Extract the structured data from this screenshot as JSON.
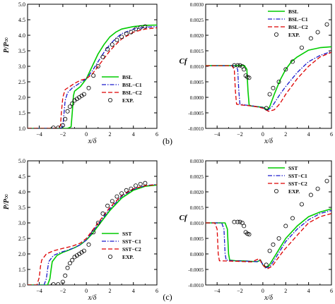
{
  "figure": {
    "caption_b": "(b)",
    "caption_c": "(c)"
  },
  "chart_data": [
    {
      "type": "line",
      "xlabel": "x/δ",
      "ylabel": "P/P∞",
      "xlim": [
        -5,
        6
      ],
      "ylim": [
        1.0,
        5.0
      ],
      "xticks": [
        -4,
        -2,
        0,
        2,
        4,
        6
      ],
      "yticks": [
        1.0,
        1.5,
        2.0,
        2.5,
        3.0,
        3.5,
        4.0,
        4.5,
        5.0
      ],
      "grid": false,
      "legend_position": "lower-right",
      "series": [
        {
          "name": "BSL",
          "color": "#00cc00",
          "style": "solid",
          "x": [
            -5,
            -2,
            -1.6,
            -1.3,
            -1.2,
            -1.1,
            -1.0,
            -0.5,
            0,
            0.5,
            1,
            1.5,
            2,
            2.5,
            3,
            4,
            5,
            6
          ],
          "y": [
            1.0,
            1.0,
            1.0,
            1.05,
            1.5,
            2.05,
            2.2,
            2.35,
            2.6,
            3.0,
            3.4,
            3.7,
            3.95,
            4.1,
            4.2,
            4.28,
            4.32,
            4.33
          ]
        },
        {
          "name": "BSL−C1",
          "color": "#1a1acc",
          "style": "dashdot",
          "x": [
            -5,
            -2.2,
            -2.0,
            -1.9,
            -1.8,
            -1.6,
            -1.2,
            -0.8,
            -0.4,
            0,
            0.5,
            1,
            1.5,
            2,
            2.5,
            3,
            4,
            5,
            6
          ],
          "y": [
            1.0,
            1.0,
            1.05,
            1.5,
            1.9,
            2.15,
            2.3,
            2.4,
            2.5,
            2.6,
            2.85,
            3.15,
            3.45,
            3.7,
            3.9,
            4.05,
            4.2,
            4.26,
            4.28
          ]
        },
        {
          "name": "BSL−C2",
          "color": "#dd0000",
          "style": "dashed",
          "x": [
            -5,
            -2.4,
            -2.2,
            -2.1,
            -2.0,
            -1.8,
            -1.4,
            -1.0,
            -0.5,
            0,
            0.5,
            1,
            1.5,
            2,
            2.5,
            3,
            4,
            5,
            6
          ],
          "y": [
            1.0,
            1.0,
            1.1,
            1.6,
            2.0,
            2.25,
            2.35,
            2.45,
            2.55,
            2.6,
            2.75,
            3.0,
            3.25,
            3.5,
            3.7,
            3.88,
            4.1,
            4.2,
            4.24
          ]
        },
        {
          "name": "EXP.",
          "color": "#000000",
          "style": "markers",
          "x": [
            -2.8,
            -2.4,
            -2.0,
            -1.8,
            -1.6,
            -1.4,
            -1.2,
            -1.0,
            -0.8,
            -0.6,
            -0.4,
            -0.2,
            0.2,
            0.6,
            1.0,
            1.4,
            1.8,
            2.2,
            2.6,
            3.0,
            3.4,
            3.8,
            4.2,
            4.6,
            5.0
          ],
          "y": [
            1.02,
            1.02,
            1.1,
            1.3,
            1.55,
            1.7,
            1.8,
            1.9,
            1.95,
            2.0,
            2.05,
            2.1,
            2.3,
            2.7,
            3.0,
            3.3,
            3.55,
            3.7,
            3.85,
            3.95,
            4.05,
            4.1,
            4.2,
            4.25,
            4.28
          ]
        }
      ]
    },
    {
      "type": "line",
      "xlabel": "x/δ",
      "ylabel": "Cf",
      "xlim": [
        -5,
        6
      ],
      "ylim": [
        -0.001,
        0.003
      ],
      "xticks": [
        -4,
        -2,
        0,
        2,
        4,
        6
      ],
      "yticks": [
        "-0.0010",
        "-0.0005",
        "0.0000",
        "0.0005",
        "0.0010",
        "0.0015",
        "0.0020",
        "0.0025",
        "0.0030"
      ],
      "grid": false,
      "legend_position": "top-right",
      "series": [
        {
          "name": "BSL",
          "color": "#00cc00",
          "style": "solid",
          "x": [
            -5,
            -1.6,
            -1.4,
            -1.3,
            -1.2,
            -1.0,
            -0.5,
            0,
            0.4,
            0.6,
            1.0,
            1.5,
            2,
            2.5,
            3,
            4,
            5,
            6
          ],
          "y": [
            0.00102,
            0.00102,
            0.0009,
            0.0002,
            -0.00025,
            -0.00028,
            -0.0003,
            -0.00032,
            -0.0004,
            -0.0003,
            0.0001,
            0.00055,
            0.0009,
            0.00115,
            0.0013,
            0.00152,
            0.0016,
            0.00163
          ]
        },
        {
          "name": "BSL−C1",
          "color": "#1a1acc",
          "style": "dashdot",
          "x": [
            -5,
            -2.4,
            -2.2,
            -2.1,
            -2.0,
            -1.5,
            -1.0,
            -0.5,
            0,
            0.4,
            0.8,
            1.5,
            2,
            3,
            4,
            5,
            6
          ],
          "y": [
            0.00102,
            0.00102,
            0.0009,
            0.0002,
            -0.00022,
            -0.00025,
            -0.00027,
            -0.0003,
            -0.00033,
            -0.00042,
            -0.0003,
            0.0001,
            0.00035,
            0.0008,
            0.00115,
            0.00135,
            0.00148
          ]
        },
        {
          "name": "BSL−C2",
          "color": "#dd0000",
          "style": "dashed",
          "x": [
            -5,
            -2.7,
            -2.5,
            -2.4,
            -2.3,
            -1.8,
            -1.2,
            -0.6,
            0,
            0.5,
            1.0,
            1.5,
            2,
            3,
            4,
            5,
            6
          ],
          "y": [
            0.00102,
            0.00102,
            0.0009,
            0.0002,
            -0.00022,
            -0.00025,
            -0.00027,
            -0.0003,
            -0.00035,
            -0.00045,
            -0.0004,
            -0.0002,
            0.0001,
            0.0006,
            0.001,
            0.0013,
            0.00145
          ]
        },
        {
          "name": "EXP.",
          "color": "#000000",
          "style": "markers",
          "x": [
            -2.5,
            -2.2,
            -2.0,
            -1.8,
            -1.65,
            -1.5,
            -1.35,
            -1.2,
            0.3,
            0.6,
            0.9,
            1.4,
            2.0,
            2.6,
            3.4,
            4.2,
            4.8,
            5.6
          ],
          "y": [
            0.00103,
            0.00103,
            0.00103,
            0.001,
            0.0009,
            0.0007,
            0.00065,
            0.00063,
            -0.00035,
            0.0001,
            0.0003,
            0.0005,
            0.0009,
            0.00115,
            0.0016,
            0.0019,
            0.0021,
            0.00235
          ]
        }
      ]
    },
    {
      "type": "line",
      "xlabel": "x/δ",
      "ylabel": "P/P∞",
      "xlim": [
        -5,
        6
      ],
      "ylim": [
        1.0,
        5.0
      ],
      "xticks": [
        -4,
        -2,
        0,
        2,
        4,
        6
      ],
      "yticks": [
        1.0,
        1.5,
        2.0,
        2.5,
        3.0,
        3.5,
        4.0,
        4.5,
        5.0
      ],
      "grid": false,
      "legend_position": "lower-right",
      "series": [
        {
          "name": "SST",
          "color": "#00cc00",
          "style": "solid",
          "x": [
            -5,
            -3.3,
            -3.1,
            -3.0,
            -2.9,
            -2.5,
            -2.0,
            -1.5,
            -1.0,
            -0.5,
            0,
            0.5,
            1,
            1.5,
            2,
            3,
            4,
            5,
            6
          ],
          "y": [
            1.0,
            1.0,
            1.2,
            1.5,
            1.75,
            1.95,
            2.05,
            2.12,
            2.2,
            2.3,
            2.45,
            2.65,
            2.9,
            3.15,
            3.4,
            3.8,
            4.05,
            4.18,
            4.22
          ]
        },
        {
          "name": "SST−C1",
          "color": "#1a1acc",
          "style": "dashdot",
          "x": [
            -5,
            -3.6,
            -3.4,
            -3.3,
            -3.2,
            -2.8,
            -2.2,
            -1.6,
            -1.0,
            -0.5,
            0,
            0.5,
            1,
            1.5,
            2,
            3,
            4,
            5,
            6
          ],
          "y": [
            1.0,
            1.0,
            1.2,
            1.5,
            1.75,
            1.95,
            2.05,
            2.12,
            2.2,
            2.3,
            2.45,
            2.7,
            2.95,
            3.2,
            3.45,
            3.85,
            4.08,
            4.2,
            4.24
          ]
        },
        {
          "name": "SST−C2",
          "color": "#dd0000",
          "style": "dashed",
          "x": [
            -5,
            -4.2,
            -4.0,
            -3.9,
            -3.8,
            -3.4,
            -2.8,
            -2.0,
            -1.2,
            -0.5,
            0,
            0.5,
            1,
            1.5,
            2,
            3,
            4,
            5,
            6
          ],
          "y": [
            1.0,
            1.0,
            1.25,
            1.6,
            1.8,
            2.0,
            2.1,
            2.18,
            2.25,
            2.35,
            2.5,
            2.75,
            3.0,
            3.25,
            3.5,
            3.88,
            4.1,
            4.2,
            4.23
          ]
        },
        {
          "name": "EXP.",
          "color": "#000000",
          "style": "markers",
          "x": [
            -2.8,
            -2.4,
            -2.0,
            -1.8,
            -1.6,
            -1.4,
            -1.2,
            -1.0,
            -0.8,
            -0.6,
            -0.4,
            -0.2,
            0.2,
            0.6,
            1.0,
            1.4,
            1.8,
            2.2,
            2.6,
            3.0,
            3.4,
            3.8,
            4.2,
            4.6,
            5.0
          ],
          "y": [
            1.02,
            1.02,
            1.1,
            1.3,
            1.55,
            1.7,
            1.8,
            1.9,
            1.95,
            2.0,
            2.05,
            2.1,
            2.3,
            2.7,
            3.0,
            3.3,
            3.55,
            3.7,
            3.85,
            3.95,
            4.05,
            4.1,
            4.2,
            4.25,
            4.28
          ]
        }
      ]
    },
    {
      "type": "line",
      "xlabel": "x/δ",
      "ylabel": "Cf",
      "xlim": [
        -5,
        6
      ],
      "ylim": [
        -0.001,
        0.003
      ],
      "xticks": [
        -4,
        -2,
        0,
        2,
        4,
        6
      ],
      "yticks": [
        "-0.0010",
        "-0.0005",
        "0.0000",
        "0.0005",
        "0.0010",
        "0.0015",
        "0.0020",
        "0.0025",
        "0.0030"
      ],
      "grid": false,
      "legend_position": "top-right",
      "series": [
        {
          "name": "SST",
          "color": "#00cc00",
          "style": "solid",
          "x": [
            -5,
            -3.3,
            -3.1,
            -3.0,
            -2.9,
            -2.4,
            -1.5,
            -0.5,
            -0.2,
            0,
            0.2,
            0.5,
            1.0,
            1.5,
            2,
            3,
            4,
            5,
            6
          ],
          "y": [
            0.001,
            0.001,
            0.0008,
            0.0,
            -0.0002,
            -0.00022,
            -0.00023,
            -0.00025,
            -0.0002,
            -0.00035,
            -0.00042,
            -0.0004,
            -0.0001,
            0.0002,
            0.0005,
            0.0009,
            0.0012,
            0.00135,
            0.00145
          ]
        },
        {
          "name": "SST−C1",
          "color": "#1a1acc",
          "style": "dashdot",
          "x": [
            -5,
            -3.6,
            -3.4,
            -3.3,
            -3.2,
            -2.6,
            -1.5,
            -0.5,
            -0.2,
            0,
            0.2,
            0.6,
            1.0,
            1.5,
            2,
            3,
            4,
            5,
            6
          ],
          "y": [
            0.001,
            0.001,
            0.0008,
            0.0,
            -0.0002,
            -0.00022,
            -0.00023,
            -0.00025,
            -0.0002,
            -0.00035,
            -0.00045,
            -0.00042,
            -0.0002,
            0.0001,
            0.0004,
            0.0008,
            0.0011,
            0.0013,
            0.0014
          ]
        },
        {
          "name": "SST−C2",
          "color": "#dd0000",
          "style": "dashed",
          "x": [
            -5,
            -4.2,
            -4.0,
            -3.9,
            -3.8,
            -3.0,
            -2.0,
            -1.0,
            -0.3,
            -0.1,
            0.1,
            0.4,
            0.8,
            1.2,
            1.8,
            3,
            4,
            5,
            6
          ],
          "y": [
            0.001,
            0.001,
            0.0008,
            0.0,
            -0.00022,
            -0.00023,
            -0.00024,
            -0.00026,
            -0.00015,
            -0.0003,
            -0.0004,
            -0.00048,
            -0.0004,
            -0.0002,
            0.0001,
            0.0006,
            0.001,
            0.0012,
            0.0013
          ]
        },
        {
          "name": "EXP.",
          "color": "#000000",
          "style": "markers",
          "x": [
            -2.5,
            -2.2,
            -2.0,
            -1.8,
            -1.65,
            -1.5,
            -1.35,
            -1.2,
            0.3,
            0.6,
            0.9,
            1.4,
            2.0,
            2.6,
            3.4,
            4.2,
            4.8,
            5.6
          ],
          "y": [
            0.00103,
            0.00103,
            0.00103,
            0.001,
            0.0009,
            0.0007,
            0.00065,
            0.00063,
            -0.00035,
            0.0001,
            0.0003,
            0.0005,
            0.0009,
            0.00115,
            0.0016,
            0.0019,
            0.0021,
            0.00235
          ]
        }
      ]
    }
  ]
}
